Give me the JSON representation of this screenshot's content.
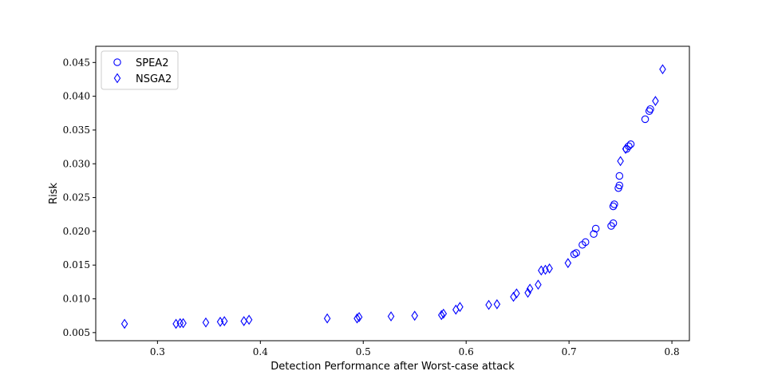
{
  "chart_data": {
    "type": "scatter",
    "title": "",
    "xlabel": "Detection Performance after Worst-case attack",
    "ylabel": "Risk",
    "xlim": [
      0.24,
      0.817
    ],
    "ylim": [
      0.0038,
      0.0474
    ],
    "xticks": [
      0.3,
      0.4,
      0.5,
      0.6,
      0.7,
      0.8
    ],
    "xtick_labels": [
      "0.3",
      "0.4",
      "0.5",
      "0.6",
      "0.7",
      "0.8"
    ],
    "yticks": [
      0.005,
      0.01,
      0.015,
      0.02,
      0.025,
      0.03,
      0.035,
      0.04,
      0.045
    ],
    "ytick_labels": [
      "0.005",
      "0.010",
      "0.015",
      "0.020",
      "0.025",
      "0.030",
      "0.035",
      "0.040",
      "0.045"
    ],
    "grid": false,
    "legend_position": "top-left",
    "series": [
      {
        "name": "SPEA2",
        "marker": "circle",
        "color": "#0000ff",
        "x": [
          0.705,
          0.707,
          0.713,
          0.716,
          0.724,
          0.726,
          0.741,
          0.743,
          0.743,
          0.744,
          0.748,
          0.749,
          0.749,
          0.756,
          0.758,
          0.76,
          0.774,
          0.778,
          0.779
        ],
        "y": [
          0.0166,
          0.0168,
          0.018,
          0.0184,
          0.0196,
          0.0204,
          0.0208,
          0.0212,
          0.0237,
          0.024,
          0.0264,
          0.0268,
          0.0282,
          0.0322,
          0.0326,
          0.0329,
          0.0366,
          0.0378,
          0.0381
        ]
      },
      {
        "name": "NSGA2",
        "marker": "diamond",
        "color": "#0000ff",
        "x": [
          0.268,
          0.318,
          0.322,
          0.325,
          0.347,
          0.361,
          0.365,
          0.384,
          0.389,
          0.465,
          0.494,
          0.496,
          0.527,
          0.55,
          0.576,
          0.578,
          0.59,
          0.594,
          0.622,
          0.63,
          0.646,
          0.649,
          0.66,
          0.662,
          0.67,
          0.673,
          0.677,
          0.681,
          0.699,
          0.75,
          0.755,
          0.784,
          0.791
        ],
        "y": [
          0.0063,
          0.0063,
          0.0064,
          0.0064,
          0.0065,
          0.0066,
          0.0067,
          0.0067,
          0.0069,
          0.0071,
          0.0071,
          0.0073,
          0.0074,
          0.0075,
          0.0076,
          0.0078,
          0.0084,
          0.0088,
          0.0091,
          0.0092,
          0.0103,
          0.0108,
          0.0109,
          0.0115,
          0.0121,
          0.0142,
          0.0143,
          0.0145,
          0.0153,
          0.0304,
          0.0322,
          0.0393,
          0.044
        ]
      }
    ]
  }
}
